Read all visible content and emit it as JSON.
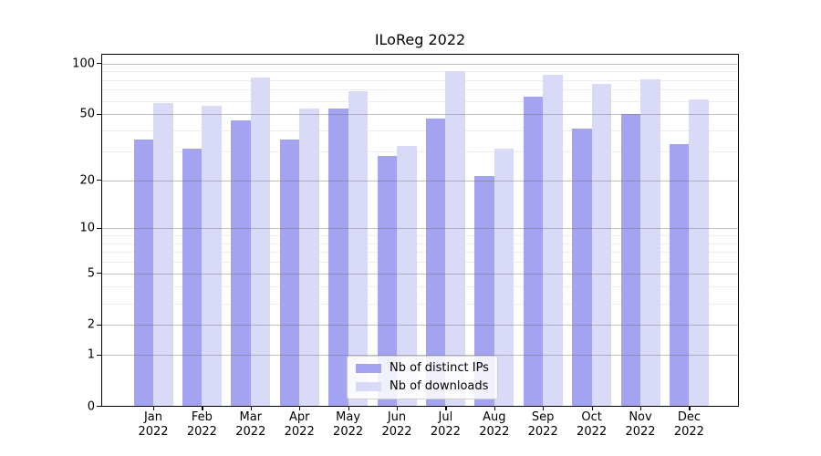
{
  "chart_data": {
    "type": "bar",
    "title": "ILoReg 2022",
    "year_label": "2022",
    "categories": [
      "Jan",
      "Feb",
      "Mar",
      "Apr",
      "May",
      "Jun",
      "Jul",
      "Aug",
      "Sep",
      "Oct",
      "Nov",
      "Dec"
    ],
    "series": [
      {
        "name": "Nb of distinct IPs",
        "color": "#a3a3f1",
        "values": [
          35,
          31,
          46,
          35,
          54,
          28,
          47,
          21,
          63,
          41,
          50,
          33
        ]
      },
      {
        "name": "Nb of downloads",
        "color": "#d9d9f8",
        "values": [
          58,
          56,
          82,
          54,
          68,
          32,
          90,
          31,
          85,
          75,
          80,
          61
        ]
      }
    ],
    "xlabel": "",
    "ylabel": "",
    "yscale": "log1p",
    "ylim": [
      0,
      114
    ],
    "y_tick_values": [
      0,
      1,
      2,
      5,
      10,
      20,
      50,
      100
    ],
    "y_tick_labels": [
      "0",
      "1",
      "2",
      "5",
      "10",
      "20",
      "50",
      "100"
    ],
    "y_minor_gridline_values": [
      3,
      4,
      6,
      7,
      8,
      9,
      30,
      40,
      60,
      70,
      80,
      90
    ],
    "grid": true,
    "legend": {
      "position": "lower-center"
    },
    "colors": {
      "background": "#ffffff",
      "spine": "#000000",
      "major_grid": "#b0b0b0",
      "minor_grid": "#ededed",
      "text": "#000000"
    }
  }
}
